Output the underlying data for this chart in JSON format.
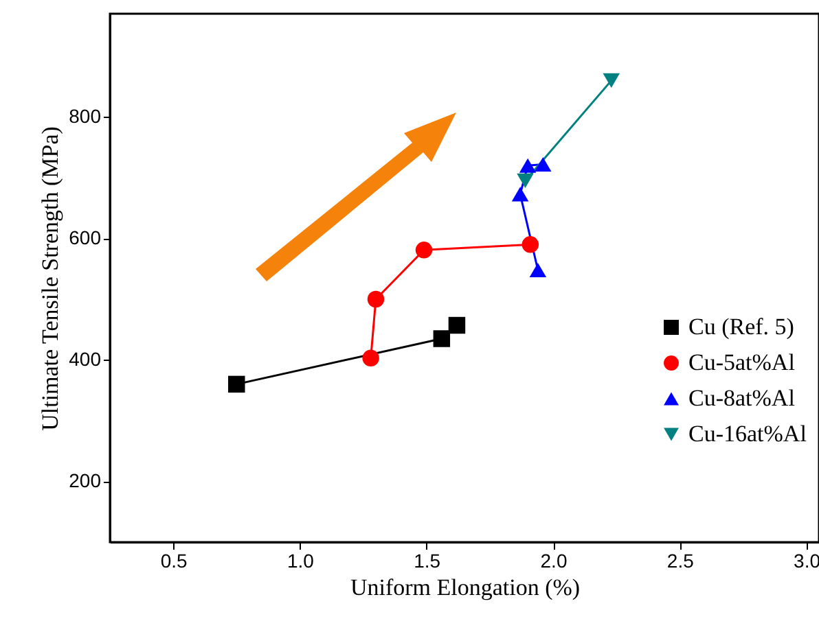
{
  "chart_data": {
    "type": "line",
    "xlabel": "Uniform Elongation (%)",
    "ylabel": "Ultimate Tensile Strength (MPa)",
    "xlim": [
      0.25,
      3.05
    ],
    "xticks": [
      {
        "value": 0.5,
        "label": "0.5"
      },
      {
        "value": 1,
        "label": "1.0"
      },
      {
        "value": 1.5,
        "label": "1.5"
      },
      {
        "value": 2,
        "label": "2.0"
      },
      {
        "value": 2.5,
        "label": "2.5"
      },
      {
        "value": 3,
        "label": "3.0"
      }
    ],
    "ylim": [
      100,
      970
    ],
    "yticks": [
      200,
      400,
      600,
      800
    ],
    "grid": false,
    "legend": "bottom right",
    "line_style": "solid",
    "series": [
      {
        "name": "Cu (Ref. 5)",
        "color": "#000000",
        "marker": "square",
        "x": [
          0.75,
          1.56,
          1.62
        ],
        "values": [
          360,
          435,
          457
        ]
      },
      {
        "name": "Cu-5at%Al",
        "color": "#ff0000",
        "marker": "circle",
        "x": [
          1.28,
          1.3,
          1.49,
          1.91
        ],
        "values": [
          403,
          500,
          581,
          590
        ]
      },
      {
        "name": "Cu-8at%Al",
        "color": "#0000ff",
        "marker": "triangle",
        "x": [
          1.94,
          1.87,
          1.9,
          1.96
        ],
        "values": [
          548,
          673,
          720,
          722
        ]
      },
      {
        "name": "Cu-16at%Al",
        "color": "#008080",
        "marker": "triangle-down",
        "x": [
          1.89,
          2.23
        ],
        "values": [
          695,
          860
        ]
      }
    ]
  }
}
